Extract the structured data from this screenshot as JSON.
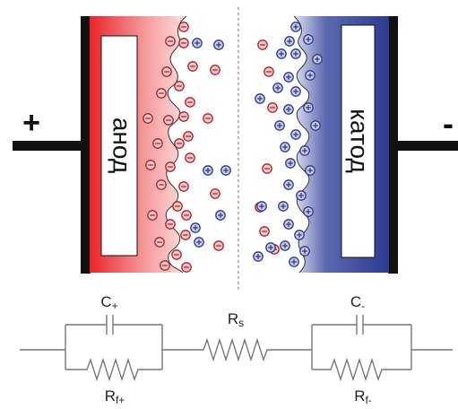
{
  "terminals": {
    "positive": "+",
    "negative": "-"
  },
  "electrodes": {
    "anode_label": "анод",
    "cathode_label": "катод",
    "anode_color": "#e8242a",
    "cathode_color": "#2b3a8f"
  },
  "ion_symbols": {
    "anion": "−",
    "cation": "+"
  },
  "ion_colors": {
    "anion_fill": "#f4c8c8",
    "anion_stroke": "#b02028",
    "cation_fill": "#c8cce8",
    "cation_stroke": "#2d3a8c"
  },
  "circuit": {
    "c_plus": "C",
    "c_plus_sub": "+",
    "c_minus": "C",
    "c_minus_sub": "-",
    "r_s": "R",
    "r_s_sub": "s",
    "r_f_plus": "R",
    "r_f_plus_sub": "f+",
    "r_f_minus": "R",
    "r_f_minus_sub": "f-"
  }
}
